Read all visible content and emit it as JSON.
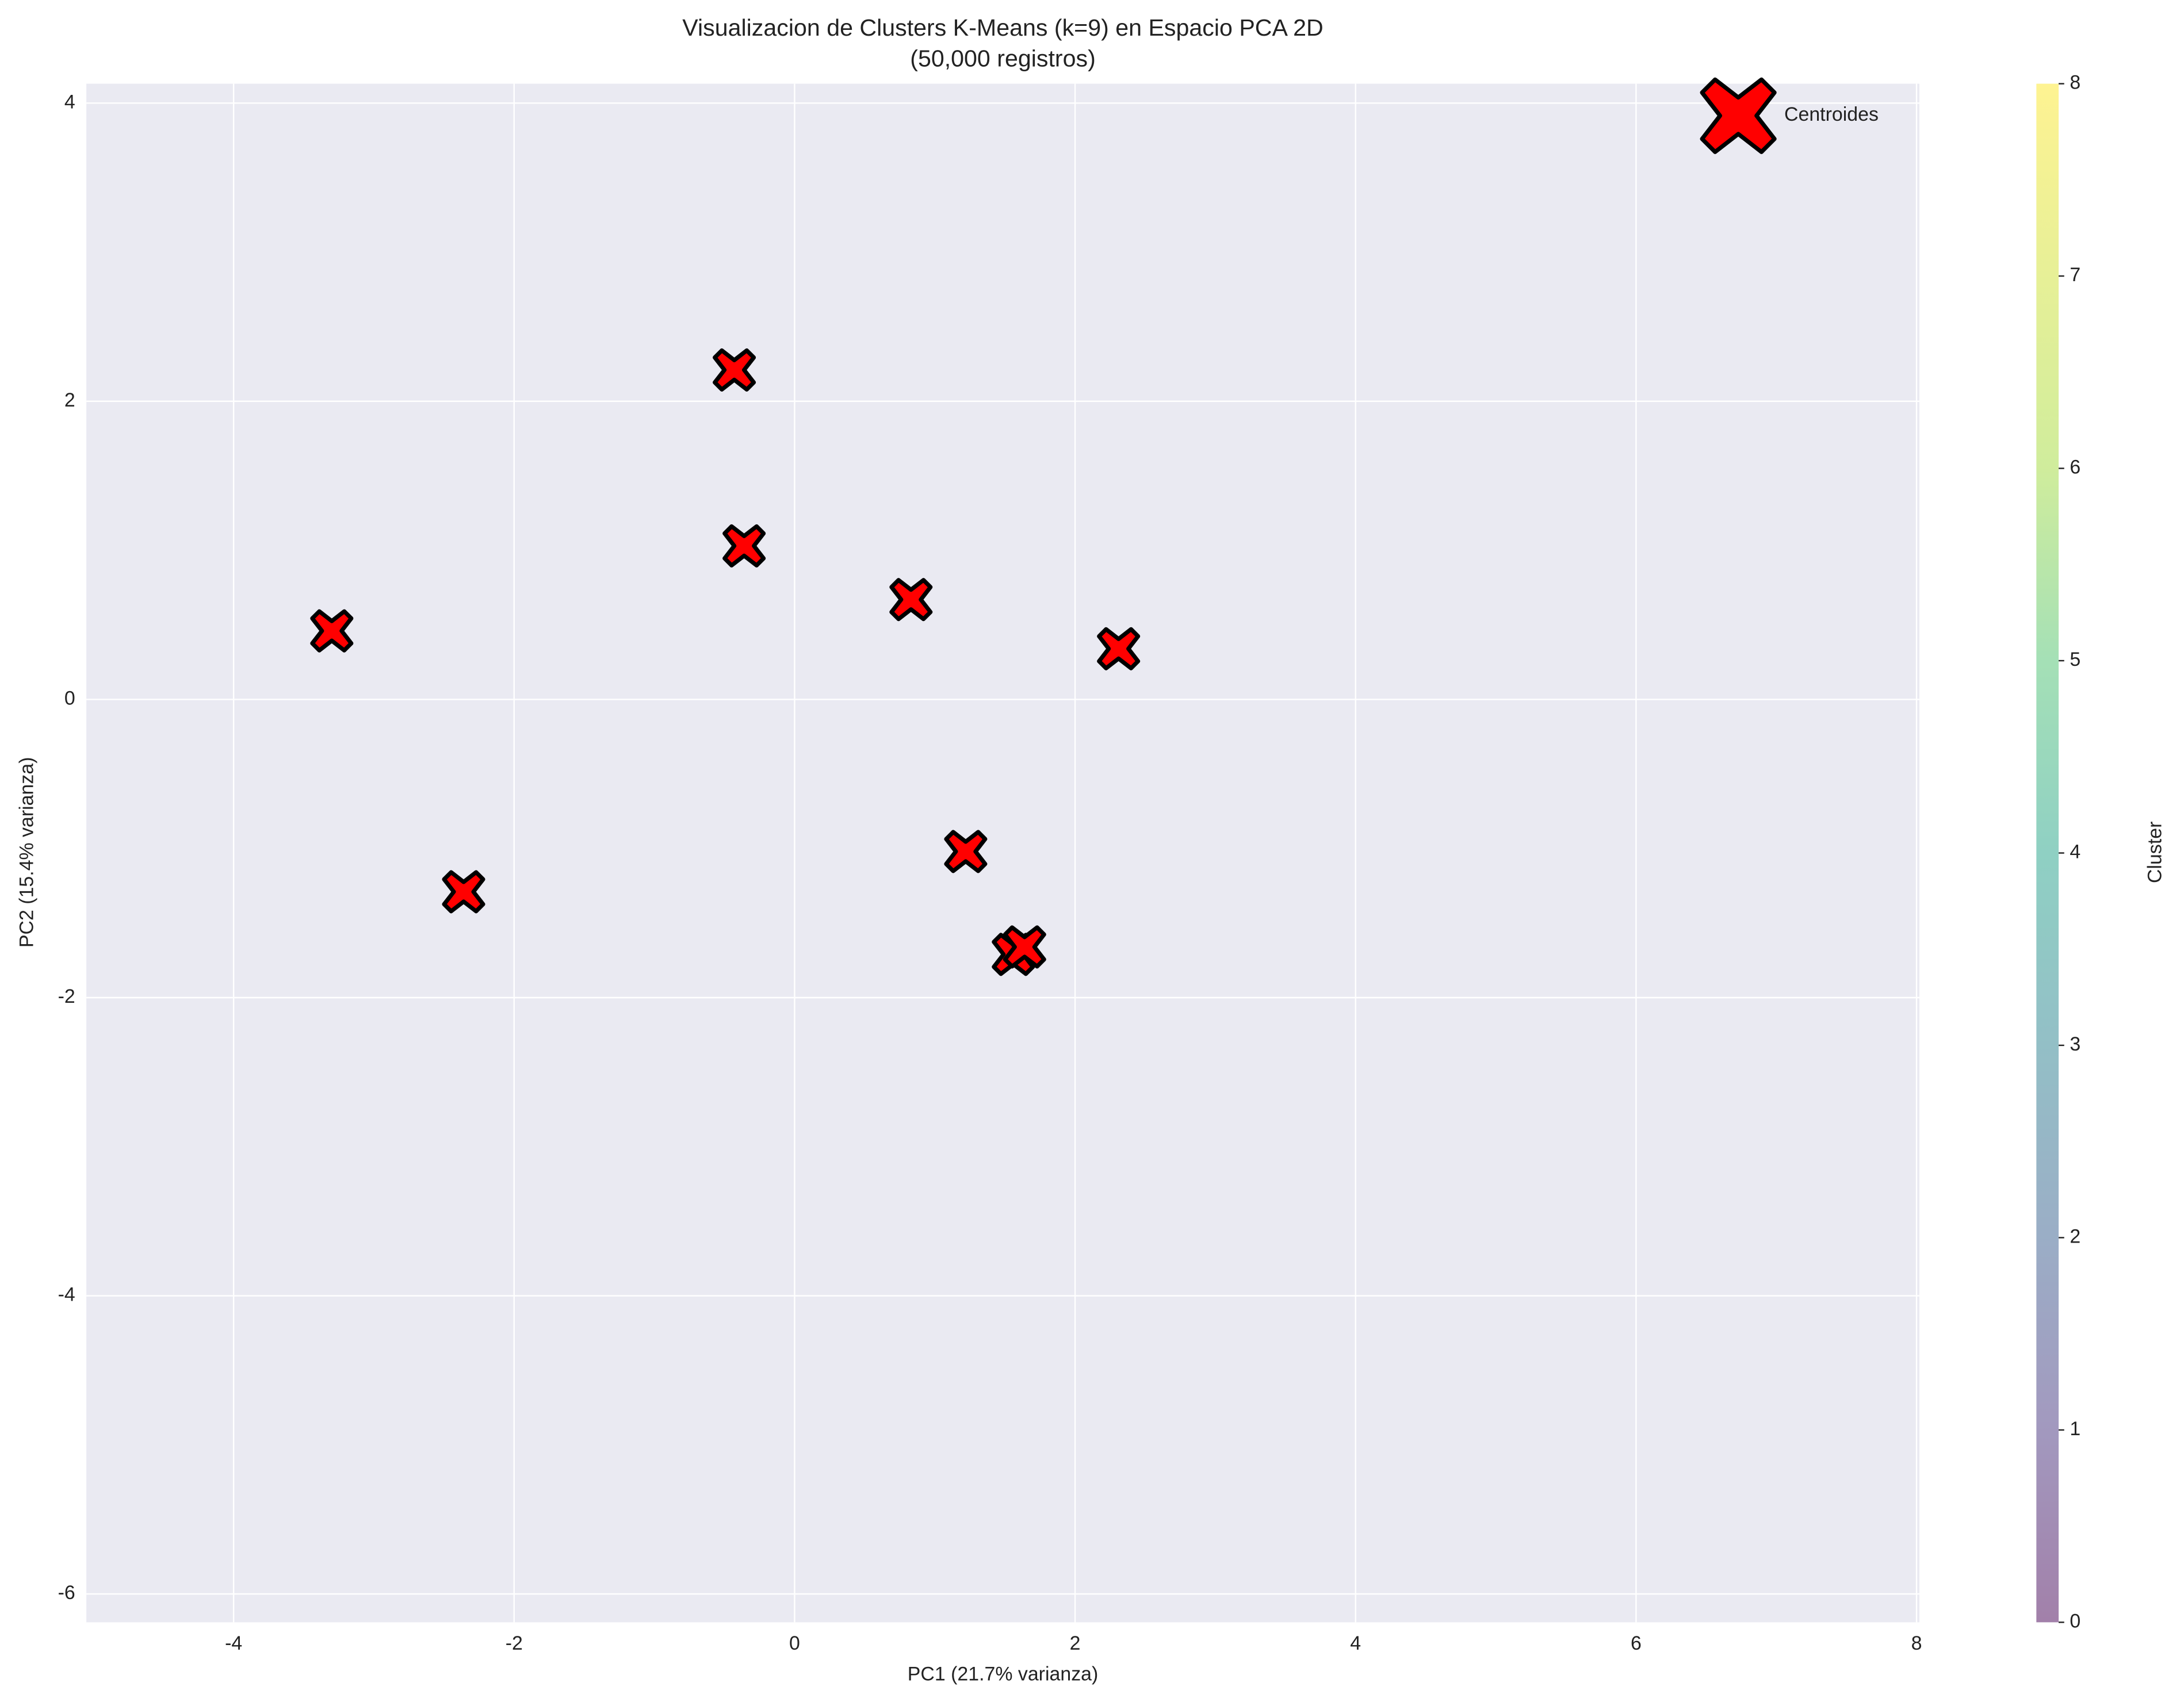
{
  "chart_data": {
    "type": "scatter",
    "title": "Visualizacion de Clusters K-Means (k=9) en Espacio PCA 2D",
    "subtitle": "(50,000 registros)",
    "x_label": "PC1 (21.7% varianza)",
    "y_label": "PC2 (15.4% varianza)",
    "xlim": [
      -5.05,
      8.02
    ],
    "xticks": [
      -4,
      -2,
      0,
      2,
      4,
      6,
      8
    ],
    "ylim": [
      -6.19,
      4.13
    ],
    "yticks": [
      -6,
      -4,
      -2,
      0,
      2,
      4
    ],
    "grid": true,
    "legend": "upper right",
    "series": [
      {
        "name": "Centroides",
        "color": "#ff0000",
        "x": [
          -3.3,
          -2.36,
          -0.43,
          -0.36,
          0.83,
          2.31,
          1.22,
          1.56,
          1.64
        ],
        "values": [
          0.46,
          -1.29,
          2.21,
          1.03,
          0.67,
          0.34,
          -1.02,
          -1.71,
          -1.66
        ]
      }
    ],
    "colorbar": {
      "label": "Cluster",
      "lim": [
        0,
        8
      ],
      "ticks": [
        0,
        1,
        2,
        3,
        4,
        5,
        6,
        7,
        8
      ]
    }
  }
}
